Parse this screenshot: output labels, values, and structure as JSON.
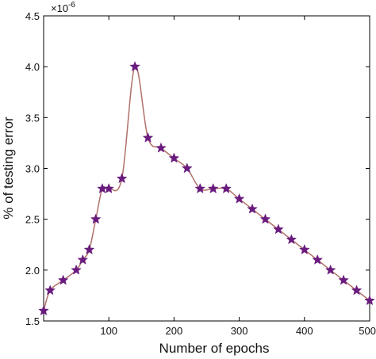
{
  "chart_data": {
    "type": "line",
    "title": "",
    "xlabel": "Number of epochs",
    "ylabel": "% of testing error",
    "y_multiplier_base": "×10",
    "y_multiplier_exp": "-6",
    "xlim": [
      0,
      500
    ],
    "ylim": [
      1.5,
      4.5
    ],
    "x_ticks": [
      100,
      200,
      300,
      400,
      500
    ],
    "y_ticks": [
      1.5,
      2.0,
      2.5,
      3.0,
      3.5,
      4.0,
      4.5
    ],
    "y_tick_labels": [
      "1.5",
      "2.0",
      "2.5",
      "3.0",
      "3.5",
      "4.0",
      "4.5"
    ],
    "grid": false,
    "legend": "none",
    "line_color": "#b0706a",
    "marker_color": "#6a1b7e",
    "marker": "star",
    "series": [
      {
        "x": [
          0,
          10,
          30,
          50,
          60,
          70,
          80,
          90,
          100,
          120,
          140,
          160,
          180,
          200,
          220,
          240,
          260,
          280,
          300,
          320,
          340,
          360,
          380,
          400,
          420,
          440,
          460,
          480,
          500
        ],
        "y": [
          1.6,
          1.8,
          1.9,
          2.0,
          2.1,
          2.2,
          2.5,
          2.8,
          2.8,
          2.9,
          4.0,
          3.3,
          3.2,
          3.1,
          3.0,
          2.8,
          2.8,
          2.8,
          2.7,
          2.6,
          2.5,
          2.4,
          2.3,
          2.2,
          2.1,
          2.0,
          1.9,
          1.8,
          1.7
        ]
      }
    ]
  }
}
